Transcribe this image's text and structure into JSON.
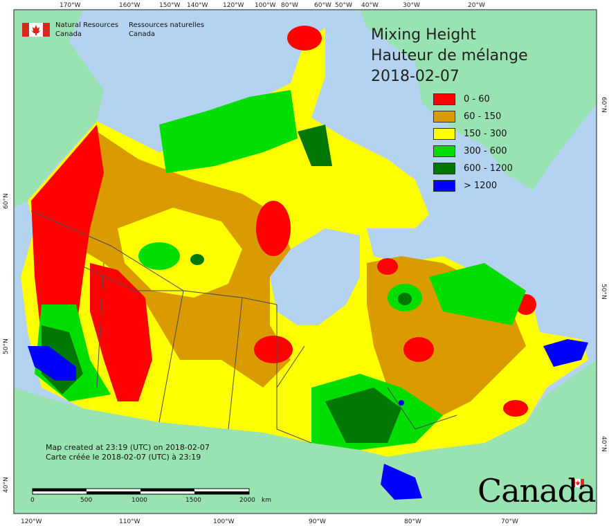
{
  "agency": {
    "name_en": "Natural Resources",
    "country_en": "Canada",
    "name_fr": "Ressources naturelles",
    "country_fr": "Canada"
  },
  "title": {
    "line1": "Mixing Height",
    "line2": "Hauteur de mélange",
    "date": "2018-02-07"
  },
  "legend": [
    {
      "label": "0 - 60",
      "color": "#ff0000"
    },
    {
      "label": "60 - 150",
      "color": "#d99b00"
    },
    {
      "label": "150 - 300",
      "color": "#ffff00"
    },
    {
      "label": "300 - 600",
      "color": "#00dd00"
    },
    {
      "label": "600 - 1200",
      "color": "#007700"
    },
    {
      "label": "> 1200",
      "color": "#0000ff"
    }
  ],
  "credits": {
    "en": "Map created at 23:19 (UTC) on 2018-02-07",
    "fr": "Carte créée le 2018-02-07 (UTC) à 23:19"
  },
  "scale_bar": {
    "labels": [
      "0",
      "500",
      "1000",
      "1500",
      "2000"
    ],
    "unit": "km"
  },
  "wordmark": "Canada",
  "graticule": {
    "top_labels": [
      "170°W",
      "160°W",
      "150°W",
      "140°W",
      "120°W",
      "100°W",
      "80°W",
      "60°W",
      "50°W",
      "40°W",
      "30°W",
      "20°W"
    ],
    "bottom_labels": [
      "120°W",
      "110°W",
      "100°W",
      "90°W",
      "80°W",
      "70°W"
    ],
    "left_labels": [
      "60°N",
      "50°N",
      "40°N"
    ],
    "right_labels": [
      "60°N",
      "50°N",
      "40°N"
    ]
  },
  "colors": {
    "water": "#b4d3f0",
    "land_outside": "#99e3b3",
    "boundary": "#4a4a4a"
  }
}
